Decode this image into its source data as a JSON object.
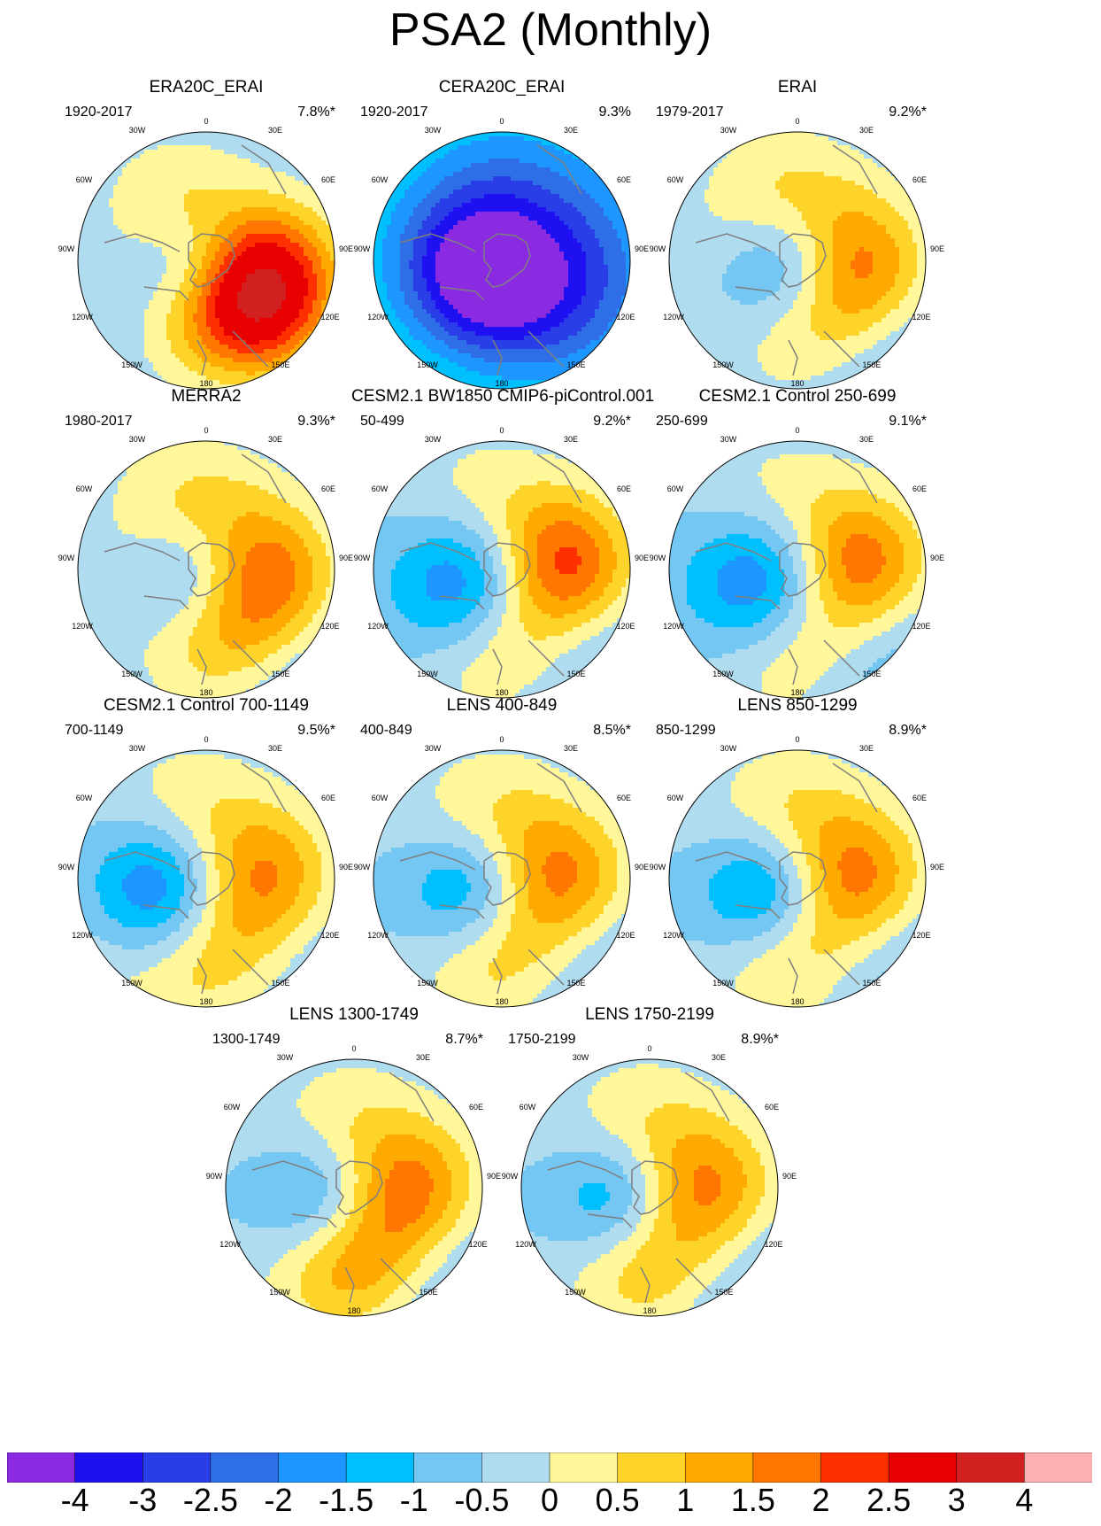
{
  "title": "PSA2 (Monthly)",
  "colors": {
    "land": "#7f7f7f",
    "palette": [
      "#8a2be2",
      "#1e10f0",
      "#2a3ee8",
      "#2e6fe8",
      "#1e96ff",
      "#00bfff",
      "#74c7f2",
      "#b0dcf0",
      "#fff799",
      "#ffd42a",
      "#ffaa00",
      "#ff7700",
      "#ff3000",
      "#e80000",
      "#d02020",
      "#ffb0b0"
    ]
  },
  "axis_labels": {
    "top": "0",
    "top_left": "30W",
    "top_right": "30E",
    "upper_left": "60W",
    "upper_right": "60E",
    "left": "90W",
    "right": "90E",
    "lower_left": "120W",
    "lower_right": "120E",
    "bottom_left": "150W",
    "bottom_right": "150E",
    "bottom": "180"
  },
  "colorbar": {
    "labels": [
      "-4",
      "-3",
      "-2.5",
      "-2",
      "-1.5",
      "-1",
      "-0.5",
      "0",
      "0.5",
      "1",
      "1.5",
      "2",
      "2.5",
      "3",
      "4"
    ]
  },
  "panels": [
    {
      "title": "ERA20C_ERAI",
      "period": "1920-2017",
      "pct": "7.8%*",
      "blobs": [
        {
          "x": 40,
          "y": 35,
          "a": 1.55,
          "r": 0.55
        },
        {
          "x": 47,
          "y": 53,
          "a": -2.7,
          "r": 0.48
        },
        {
          "x": 60,
          "y": 70,
          "a": 4.0,
          "r": 0.55
        },
        {
          "x": 75,
          "y": 55,
          "a": 2.4,
          "r": 0.5
        },
        {
          "x": 58,
          "y": 88,
          "a": -0.8,
          "r": 0.45
        }
      ]
    },
    {
      "title": "CERA20C_ERAI",
      "period": "1920-2017",
      "pct": "9.3%",
      "blobs": [
        {
          "x": 50,
          "y": 30,
          "a": -1.1,
          "r": 0.75
        },
        {
          "x": 40,
          "y": 58,
          "a": -3.3,
          "r": 0.6
        },
        {
          "x": 70,
          "y": 58,
          "a": -2.3,
          "r": 0.7
        },
        {
          "x": 58,
          "y": 50,
          "a": 0.9,
          "r": 0.5
        },
        {
          "x": 35,
          "y": 78,
          "a": 0.7,
          "r": 0.7
        }
      ]
    },
    {
      "title": "ERAI",
      "period": "1979-2017",
      "pct": "9.2%*",
      "blobs": [
        {
          "x": 45,
          "y": 37,
          "a": 2.0,
          "r": 0.6
        },
        {
          "x": 47,
          "y": 53,
          "a": -3.6,
          "r": 0.5
        },
        {
          "x": 60,
          "y": 70,
          "a": 3.3,
          "r": 0.6
        },
        {
          "x": 75,
          "y": 52,
          "a": 1.5,
          "r": 0.5
        },
        {
          "x": 72,
          "y": 80,
          "a": -1.8,
          "r": 0.6
        }
      ]
    },
    {
      "title": "MERRA2",
      "period": "1980-2017",
      "pct": "9.3%*",
      "blobs": [
        {
          "x": 45,
          "y": 37,
          "a": 2.0,
          "r": 0.6
        },
        {
          "x": 47,
          "y": 53,
          "a": -3.5,
          "r": 0.5
        },
        {
          "x": 60,
          "y": 70,
          "a": 3.8,
          "r": 0.6
        },
        {
          "x": 75,
          "y": 52,
          "a": 1.5,
          "r": 0.5
        },
        {
          "x": 72,
          "y": 80,
          "a": -1.8,
          "r": 0.6
        }
      ]
    },
    {
      "title": "CESM2.1 BW1850 CMIP6-piControl.001",
      "period": "50-499",
      "pct": "9.2%*",
      "blobs": [
        {
          "x": 42,
          "y": 35,
          "a": 1.6,
          "r": 0.6
        },
        {
          "x": 40,
          "y": 55,
          "a": -4.0,
          "r": 0.55
        },
        {
          "x": 52,
          "y": 72,
          "a": 3.0,
          "r": 0.6
        },
        {
          "x": 75,
          "y": 48,
          "a": 2.5,
          "r": 0.5
        },
        {
          "x": 72,
          "y": 80,
          "a": -1.3,
          "r": 0.6
        }
      ]
    },
    {
      "title": "CESM2.1 Control 250-699",
      "period": "250-699",
      "pct": "9.1%*",
      "blobs": [
        {
          "x": 42,
          "y": 35,
          "a": 1.5,
          "r": 0.6
        },
        {
          "x": 40,
          "y": 55,
          "a": -4.0,
          "r": 0.55
        },
        {
          "x": 52,
          "y": 72,
          "a": 3.0,
          "r": 0.6
        },
        {
          "x": 75,
          "y": 48,
          "a": 2.2,
          "r": 0.5
        },
        {
          "x": 72,
          "y": 80,
          "a": -1.4,
          "r": 0.6
        }
      ]
    },
    {
      "title": "CESM2.1 Control 700-1149",
      "period": "700-1149",
      "pct": "9.5%*",
      "blobs": [
        {
          "x": 42,
          "y": 33,
          "a": 1.5,
          "r": 0.6
        },
        {
          "x": 35,
          "y": 55,
          "a": -4.0,
          "r": 0.55
        },
        {
          "x": 55,
          "y": 72,
          "a": 3.0,
          "r": 0.6
        },
        {
          "x": 75,
          "y": 48,
          "a": 1.5,
          "r": 0.5
        },
        {
          "x": 68,
          "y": 78,
          "a": -1.3,
          "r": 0.6
        },
        {
          "x": 22,
          "y": 70,
          "a": 0.9,
          "r": 0.7
        }
      ]
    },
    {
      "title": "LENS 400-849",
      "period": "400-849",
      "pct": "8.5%*",
      "blobs": [
        {
          "x": 45,
          "y": 35,
          "a": 1.5,
          "r": 0.6
        },
        {
          "x": 40,
          "y": 55,
          "a": -3.3,
          "r": 0.5
        },
        {
          "x": 52,
          "y": 72,
          "a": 3.0,
          "r": 0.6
        },
        {
          "x": 75,
          "y": 50,
          "a": 1.7,
          "r": 0.5
        },
        {
          "x": 70,
          "y": 78,
          "a": -1.4,
          "r": 0.6
        }
      ]
    },
    {
      "title": "LENS 850-1299",
      "period": "850-1299",
      "pct": "8.9%*",
      "blobs": [
        {
          "x": 45,
          "y": 35,
          "a": 1.6,
          "r": 0.6
        },
        {
          "x": 40,
          "y": 55,
          "a": -3.6,
          "r": 0.5
        },
        {
          "x": 52,
          "y": 72,
          "a": 3.0,
          "r": 0.6
        },
        {
          "x": 75,
          "y": 50,
          "a": 1.8,
          "r": 0.5
        },
        {
          "x": 70,
          "y": 78,
          "a": -1.5,
          "r": 0.6
        }
      ]
    },
    {
      "title": "LENS 1300-1749",
      "period": "1300-1749",
      "pct": "8.7%*",
      "blobs": [
        {
          "x": 45,
          "y": 35,
          "a": 1.3,
          "r": 0.6
        },
        {
          "x": 40,
          "y": 55,
          "a": -3.2,
          "r": 0.5
        },
        {
          "x": 52,
          "y": 72,
          "a": 3.8,
          "r": 0.6
        },
        {
          "x": 75,
          "y": 50,
          "a": 1.6,
          "r": 0.5
        },
        {
          "x": 70,
          "y": 78,
          "a": -1.5,
          "r": 0.6
        }
      ]
    },
    {
      "title": "LENS 1750-2199",
      "period": "1750-2199",
      "pct": "8.9%*",
      "blobs": [
        {
          "x": 45,
          "y": 35,
          "a": 1.4,
          "r": 0.6
        },
        {
          "x": 40,
          "y": 55,
          "a": -3.2,
          "r": 0.5
        },
        {
          "x": 52,
          "y": 72,
          "a": 3.2,
          "r": 0.6
        },
        {
          "x": 75,
          "y": 50,
          "a": 1.6,
          "r": 0.5
        },
        {
          "x": 70,
          "y": 78,
          "a": -1.4,
          "r": 0.6
        }
      ]
    }
  ]
}
